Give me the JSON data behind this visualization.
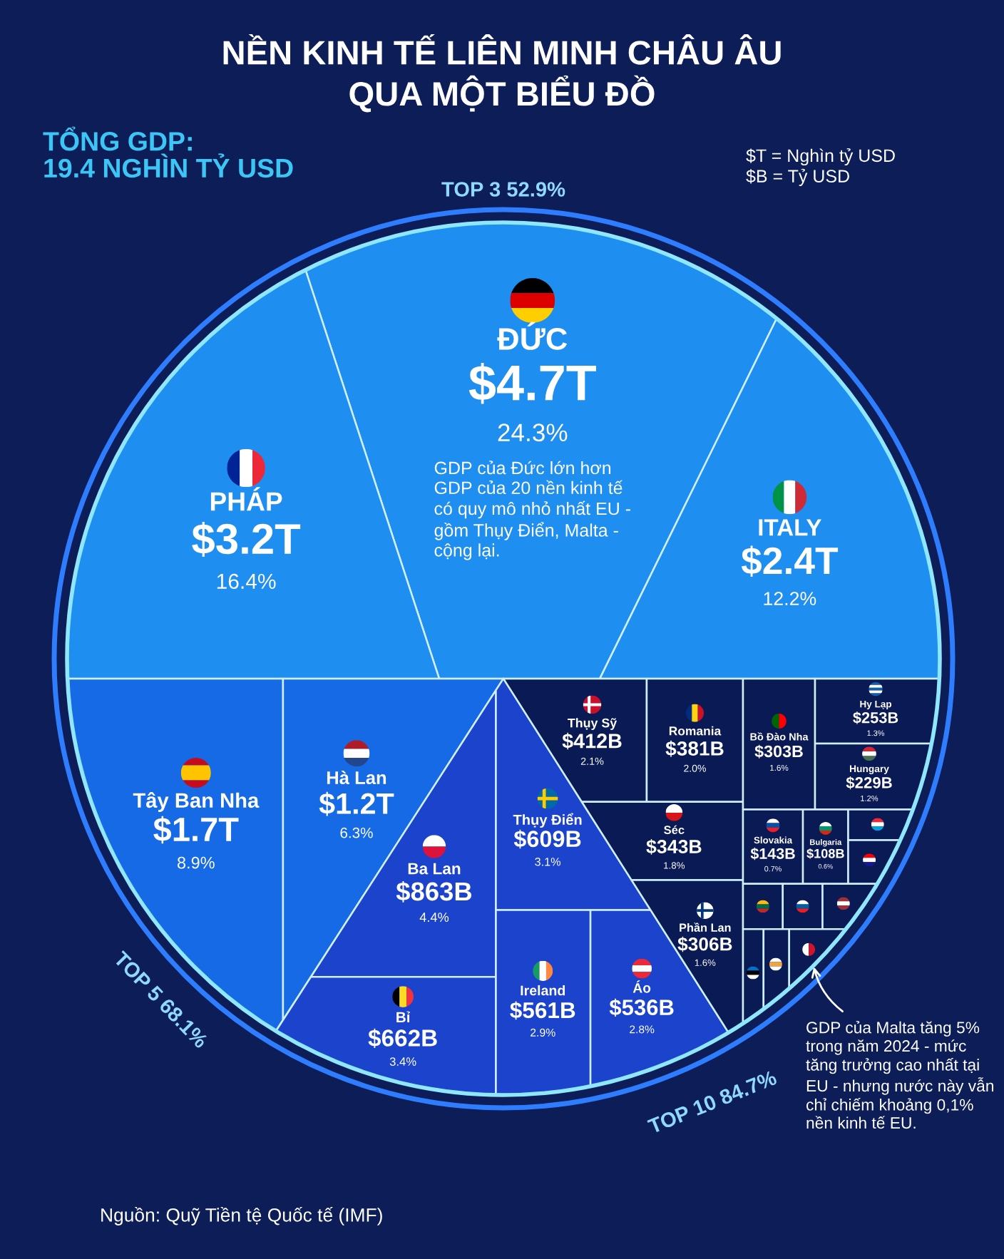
{
  "chart_data": {
    "type": "other",
    "title": "NỀN KINH TẾ LIÊN MINH CHÂU ÂU\nQUA MỘT BIỂU ĐỒ",
    "subtitle": "TỔNG GDP:\n19.4 NGHÌN TỶ USD",
    "categories": [
      "ĐỨC",
      "PHÁP",
      "ITALY",
      "Tây Ban Nha",
      "Hà Lan",
      "Ba Lan",
      "Bỉ",
      "Thụy Điển",
      "Ireland",
      "Áo",
      "Thụy Sỹ",
      "Romania",
      "Séc",
      "Phần Lan",
      "Bồ Đào Nha",
      "Hy Lạp",
      "Hungary",
      "Slovakia",
      "Bulgaria",
      null,
      null,
      null,
      null,
      null,
      null,
      null,
      null
    ],
    "series": [
      {
        "color": "#1f8ef1",
        "values": [
          4.7,
          3.2,
          2.4,
          null,
          null,
          null,
          null,
          null,
          null,
          null,
          null,
          null,
          null,
          null,
          null,
          null,
          null,
          null,
          null,
          null,
          null,
          null,
          null,
          null,
          null,
          null,
          null
        ],
        "value_labels": [
          "$4.7T",
          "$3.2T",
          "$2.4T",
          null,
          null,
          null,
          null,
          null,
          null,
          null,
          null,
          null,
          null,
          null,
          null,
          null,
          null,
          null,
          null,
          null,
          null,
          null,
          null,
          null,
          null,
          null,
          null
        ]
      },
      {
        "color": "#176ae6",
        "values": [
          null,
          null,
          null,
          1.7,
          1.2,
          null,
          null,
          null,
          null,
          null,
          null,
          null,
          null,
          null,
          null,
          null,
          null,
          null,
          null,
          null,
          null,
          null,
          null,
          null,
          null,
          null,
          null
        ],
        "value_labels": [
          null,
          null,
          null,
          "$1.7T",
          "$1.2T",
          null,
          null,
          null,
          null,
          null,
          null,
          null,
          null,
          null,
          null,
          null,
          null,
          null,
          null,
          null,
          null,
          null,
          null,
          null,
          null,
          null,
          null
        ]
      },
      {
        "color": "#1b43cc",
        "values": [
          null,
          null,
          null,
          null,
          null,
          863,
          662,
          609,
          561,
          536,
          null,
          null,
          null,
          null,
          null,
          null,
          null,
          null,
          null,
          null,
          null,
          null,
          null,
          null,
          null,
          null,
          null
        ],
        "value_labels": [
          null,
          null,
          null,
          null,
          null,
          "$863B",
          "$662B",
          "$609B",
          "$561B",
          "$536B",
          null,
          null,
          null,
          null,
          null,
          null,
          null,
          null,
          null,
          null,
          null,
          null,
          null,
          null,
          null,
          null,
          null
        ]
      },
      {
        "color": "#0a1a55",
        "values": [
          null,
          null,
          null,
          null,
          null,
          null,
          null,
          null,
          null,
          null,
          412,
          381,
          343,
          306,
          303,
          253,
          229,
          143,
          108,
          null,
          null,
          null,
          null,
          null,
          null,
          null,
          null
        ],
        "value_labels": [
          null,
          null,
          null,
          null,
          null,
          null,
          null,
          null,
          null,
          null,
          "$412B",
          "$381B",
          "$343B",
          "$306B",
          "$303B",
          "$253B",
          "$229B",
          "$143B",
          "$108B",
          null,
          null,
          null,
          null,
          null,
          null,
          null,
          null
        ]
      },
      {
        "values": [
          24.3,
          16.4,
          12.2,
          8.9,
          6.3,
          4.4,
          3.4,
          3.1,
          2.9,
          2.8,
          2.1,
          2.0,
          1.8,
          1.6,
          1.6,
          1.3,
          1.2,
          0.7,
          0.6,
          null,
          null,
          null,
          null,
          null,
          null,
          null,
          null
        ],
        "value_labels": [
          "24.3%",
          "16.4%",
          "12.2%",
          "8.9%",
          "6.3%",
          "4.4%",
          "3.4%",
          "3.1%",
          "2.9%",
          "2.8%",
          "2.1%",
          "2.0%",
          "1.8%",
          "1.6%",
          "1.6%",
          "1.3%",
          "1.2%",
          "0.7%",
          "0.6%",
          null,
          null,
          null,
          null,
          null,
          null,
          null,
          null
        ]
      }
    ],
    "annotations": [
      "$T = Nghìn tỷ USD\n$B = Tỷ USD",
      "TOP 3 52.9%",
      "TOP 5 68.1%",
      "TOP 10 84.7%",
      "GDP của Đức lớn hơn\nGDP của 20 nền kinh tế\ncó quy mô nhỏ nhất EU -\ngồm Thụy Điển, Malta -\ncộng lại.",
      "GDP của Malta tăng 5%\ntrong năm 2024 - mức\ntăng trưởng cao nhất tại\nEU - nhưng nước này vẫn\nchỉ chiếm khoảng 0,1%\nnền kinh tế EU.",
      "Nguồn: Quỹ Tiền tệ Quốc tế (IMF)"
    ]
  }
}
